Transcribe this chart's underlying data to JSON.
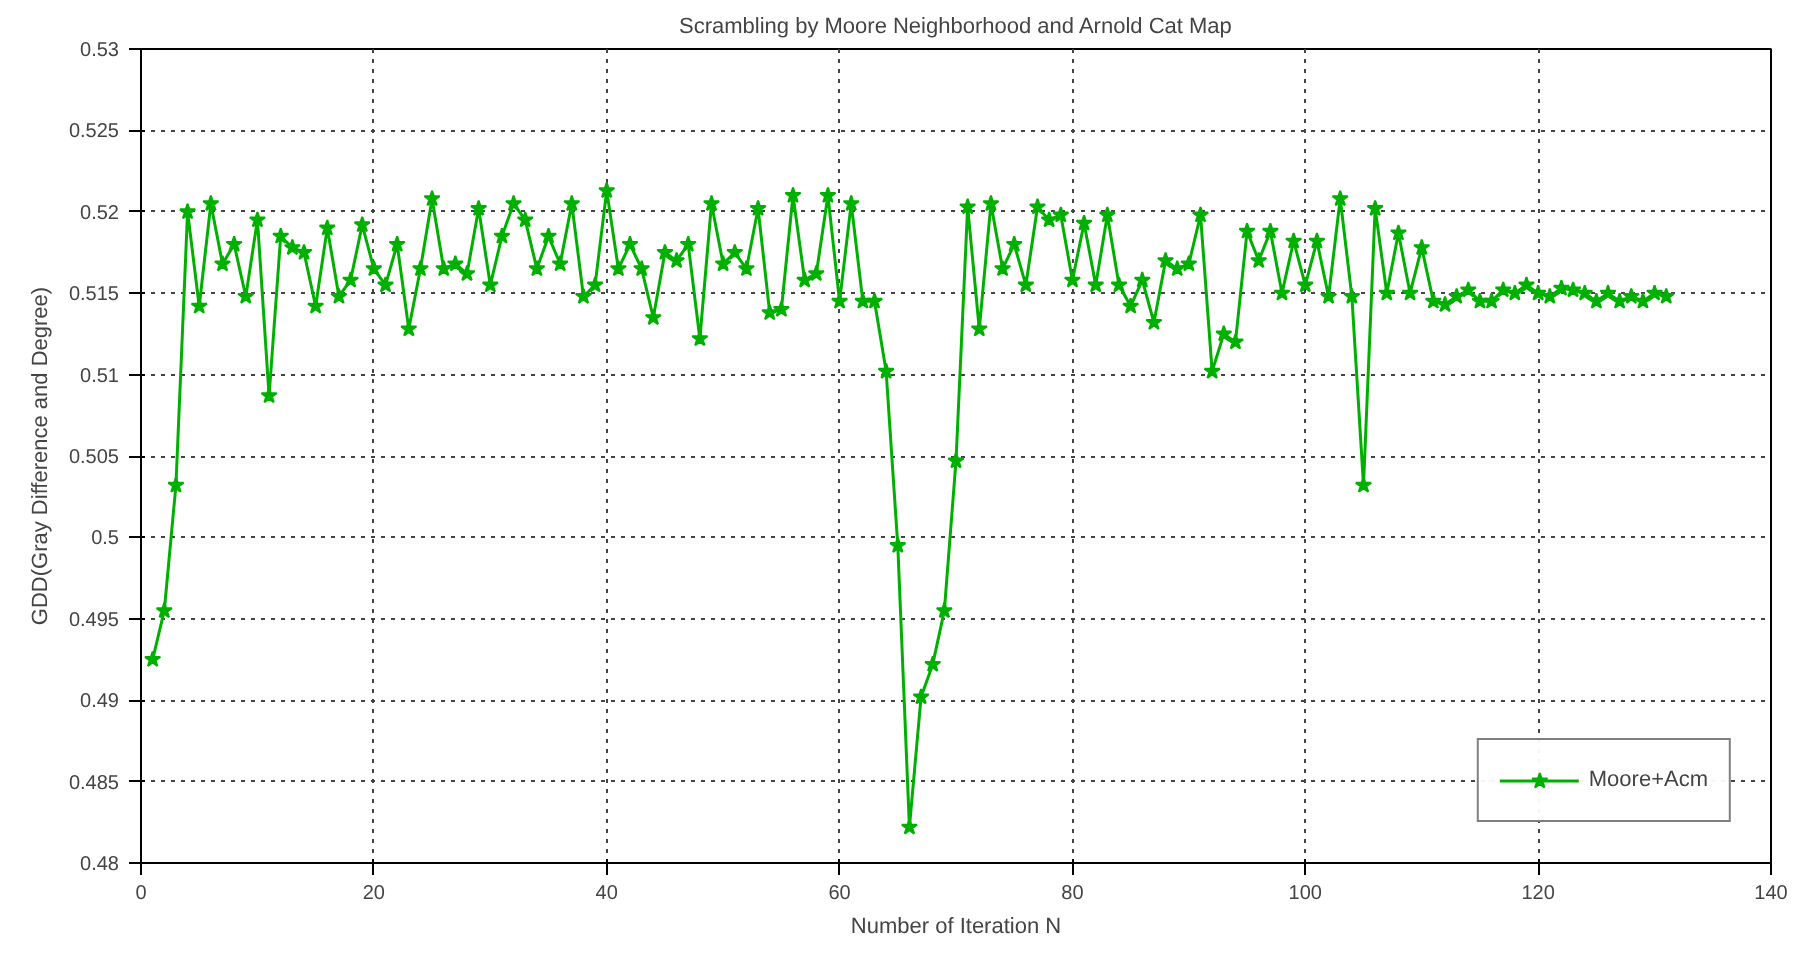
{
  "chart_data": {
    "type": "line",
    "title": "Scrambling by Moore Neighborhood and Arnold Cat Map",
    "xlabel": "Number of Iteration N",
    "ylabel": "GDD(Gray Difference and Degree)",
    "x": [
      1,
      2,
      3,
      4,
      5,
      6,
      7,
      8,
      9,
      10,
      11,
      12,
      13,
      14,
      15,
      16,
      17,
      18,
      19,
      20,
      21,
      22,
      23,
      24,
      25,
      26,
      27,
      28,
      29,
      30,
      31,
      32,
      33,
      34,
      35,
      36,
      37,
      38,
      39,
      40,
      41,
      42,
      43,
      44,
      45,
      46,
      47,
      48,
      49,
      50,
      51,
      52,
      53,
      54,
      55,
      56,
      57,
      58,
      59,
      60,
      61,
      62,
      63,
      64,
      65,
      66,
      67,
      68,
      69,
      70,
      71,
      72,
      73,
      74,
      75,
      76,
      77,
      78,
      79,
      80,
      81,
      82,
      83,
      84,
      85,
      86,
      87,
      88,
      89,
      90,
      91,
      92,
      93,
      94,
      95,
      96,
      97,
      98,
      99,
      100,
      101,
      102,
      103,
      104,
      105,
      106,
      107,
      108,
      109,
      110,
      111,
      112,
      113,
      114,
      115,
      116,
      117,
      118,
      119,
      120,
      121,
      122,
      123,
      124,
      125,
      126,
      127,
      128,
      129,
      130,
      131
    ],
    "series": [
      {
        "name": "Moore+Acm",
        "color": "#00b000",
        "values": [
          0.4925,
          0.4955,
          0.5032,
          0.52,
          0.5142,
          0.5205,
          0.5168,
          0.518,
          0.5148,
          0.5195,
          0.5087,
          0.5185,
          0.5178,
          0.5175,
          0.5142,
          0.519,
          0.5148,
          0.5158,
          0.5192,
          0.5165,
          0.5155,
          0.518,
          0.5128,
          0.5165,
          0.5208,
          0.5165,
          0.5168,
          0.5162,
          0.5202,
          0.5155,
          0.5185,
          0.5205,
          0.5195,
          0.5165,
          0.5185,
          0.5168,
          0.5205,
          0.5148,
          0.5155,
          0.5213,
          0.5165,
          0.518,
          0.5165,
          0.5135,
          0.5175,
          0.517,
          0.518,
          0.5122,
          0.5205,
          0.5168,
          0.5175,
          0.5165,
          0.5202,
          0.5138,
          0.514,
          0.521,
          0.5158,
          0.5162,
          0.521,
          0.5145,
          0.5205,
          0.5145,
          0.5145,
          0.5102,
          0.4995,
          0.4822,
          0.4902,
          0.4922,
          0.4955,
          0.5047,
          0.5203,
          0.5128,
          0.5205,
          0.5165,
          0.518,
          0.5155,
          0.5203,
          0.5195,
          0.5198,
          0.5158,
          0.5193,
          0.5155,
          0.5198,
          0.5155,
          0.5142,
          0.5158,
          0.5132,
          0.517,
          0.5165,
          0.5168,
          0.5198,
          0.5102,
          0.5125,
          0.512,
          0.5188,
          0.517,
          0.5188,
          0.515,
          0.5182,
          0.5155,
          0.5182,
          0.5148,
          0.5208,
          0.5148,
          0.5032,
          0.5202,
          0.515,
          0.5187,
          0.515,
          0.5178,
          0.5145,
          0.5143,
          0.5148,
          0.5152,
          0.5145,
          0.5145,
          0.5152,
          0.515,
          0.5155,
          0.515,
          0.5148,
          0.5153,
          0.5152,
          0.515,
          0.5145,
          0.515,
          0.5145,
          0.5148,
          0.5145,
          0.515,
          0.5148
        ]
      }
    ],
    "xlim": [
      0,
      140
    ],
    "xticks": [
      0,
      20,
      40,
      60,
      80,
      100,
      120,
      140
    ],
    "ylim": [
      0.48,
      0.53
    ],
    "yticks": [
      {
        "value": 0.48,
        "label": "0.48"
      },
      {
        "value": 0.485,
        "label": "0.485"
      },
      {
        "value": 0.49,
        "label": "0.49"
      },
      {
        "value": 0.495,
        "label": "0.495"
      },
      {
        "value": 0.5,
        "label": "0.5"
      },
      {
        "value": 0.505,
        "label": "0.505"
      },
      {
        "value": 0.51,
        "label": "0.51"
      },
      {
        "value": 0.515,
        "label": "0.515"
      },
      {
        "value": 0.52,
        "label": "0.52"
      },
      {
        "value": 0.525,
        "label": "0.525"
      },
      {
        "value": 0.53,
        "label": "0.53"
      }
    ],
    "grid": true,
    "legend": "bottom right",
    "marker": "star",
    "line_style": "solid"
  }
}
